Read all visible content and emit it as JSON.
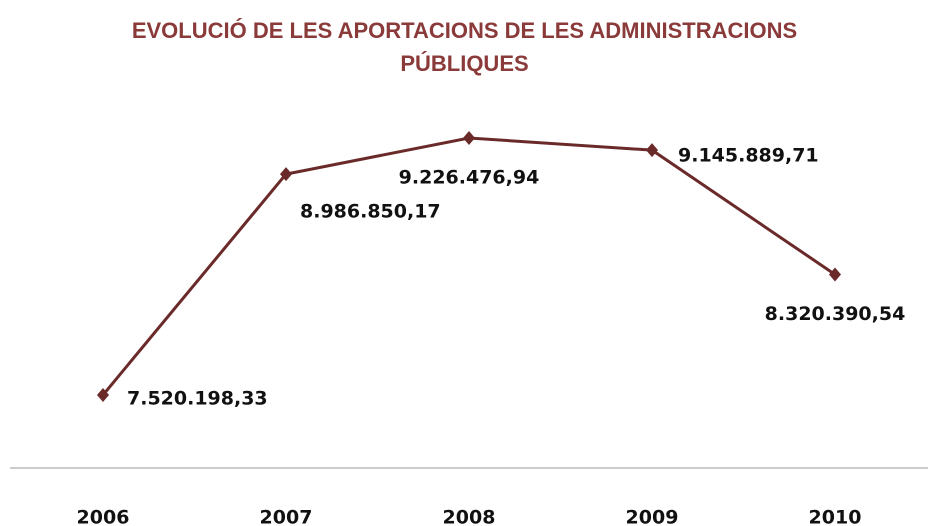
{
  "chart_data": {
    "type": "line",
    "title": "EVOLUCIÓ DE LES APORTACIONS DE LES ADMINISTRACIONS PÚBLIQUES",
    "categories": [
      "2006",
      "2007",
      "2008",
      "2009",
      "2010"
    ],
    "series": [
      {
        "color": "#6b2a2a",
        "values": [
          7520198.33,
          8986850.17,
          9226476.94,
          9145889.71,
          8320390.54
        ],
        "value_labels": [
          "7.520.198,33",
          "8.986.850,17",
          "9.226.476,94",
          "9.145.889,71",
          "8.320.390,54"
        ]
      }
    ]
  }
}
